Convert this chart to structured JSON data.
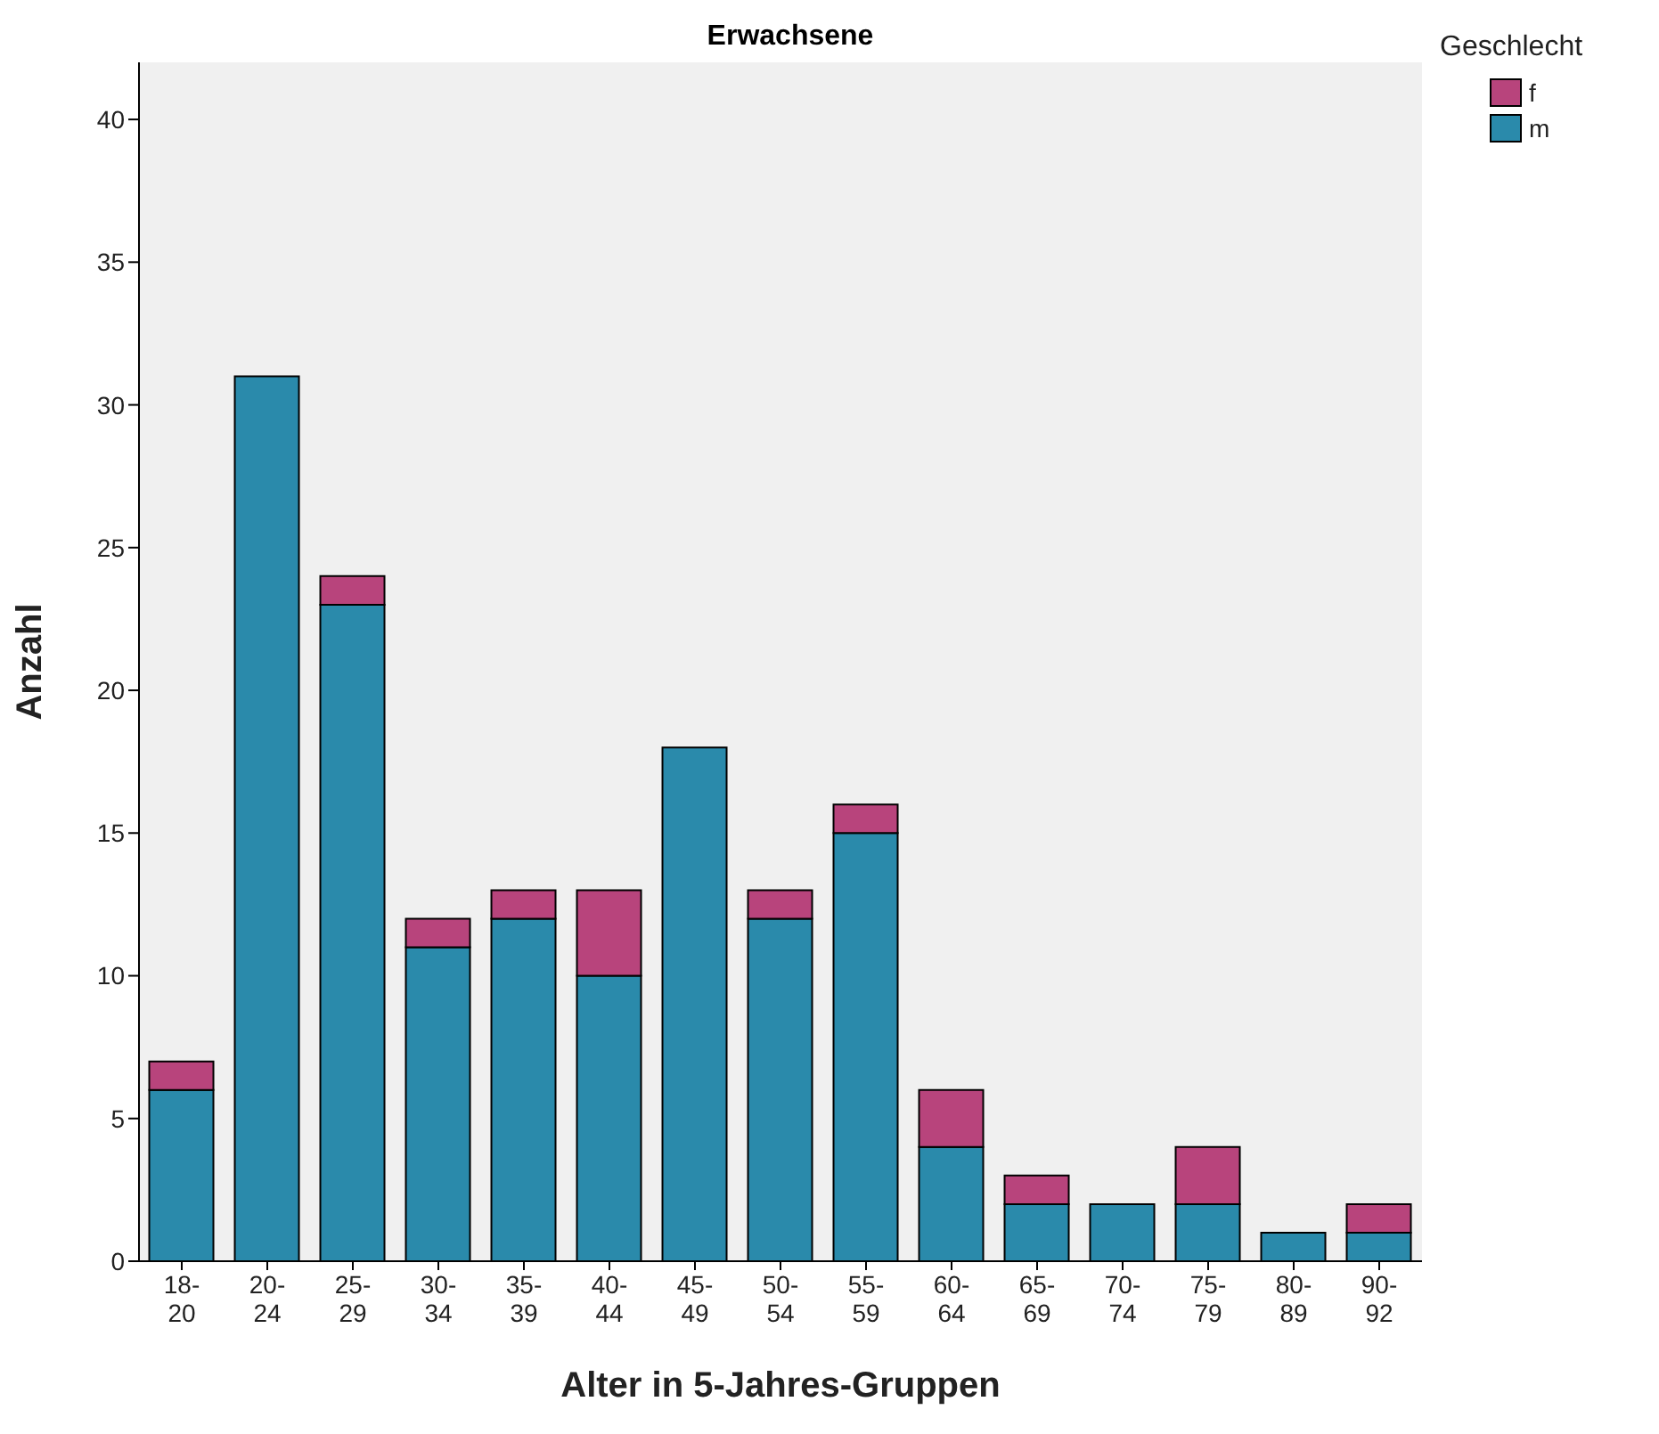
{
  "chart_data": {
    "type": "bar",
    "title": "Erwachsene",
    "xlabel": "Alter in 5-Jahres-Gruppen",
    "ylabel": "Anzahl",
    "legend_title": "Geschlecht",
    "categories": [
      "18-20",
      "20-24",
      "25-29",
      "30-34",
      "35-39",
      "40-44",
      "45-49",
      "50-54",
      "55-59",
      "60-64",
      "65-69",
      "70-74",
      "75-79",
      "80-89",
      "90-92"
    ],
    "series": [
      {
        "name": "m",
        "color": "#2a8aab",
        "values": [
          6,
          31,
          23,
          11,
          12,
          10,
          18,
          12,
          15,
          4,
          2,
          2,
          2,
          1,
          1
        ]
      },
      {
        "name": "f",
        "color": "#b8447c",
        "values": [
          1,
          0,
          1,
          1,
          1,
          3,
          0,
          1,
          1,
          2,
          1,
          0,
          2,
          0,
          1
        ]
      }
    ],
    "stacked": true,
    "ylim": [
      0,
      42
    ],
    "yticks": [
      0,
      5,
      10,
      15,
      20,
      25,
      30,
      35,
      40
    ],
    "grid": false,
    "legend": "top right"
  }
}
